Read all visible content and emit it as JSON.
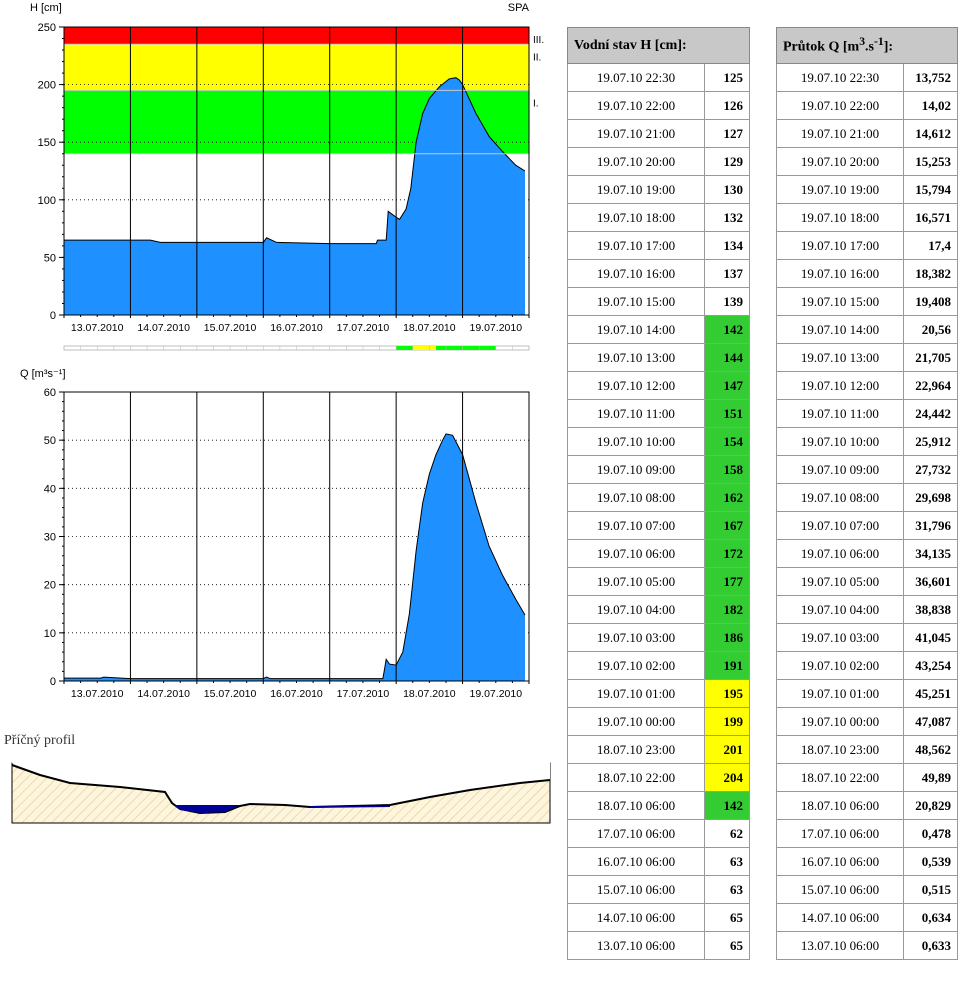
{
  "colors": {
    "area_fill": "#1e90ff",
    "area_stroke": "#000000",
    "level_red": "#ff0000",
    "level_yellow": "#ffff00",
    "level_green": "#00ff00",
    "level_line": "#c8c8c8",
    "table_header_bg": "#c8c8c8",
    "cell_green": "#33cc33",
    "cell_yellow": "#ffff00",
    "profile_fill": "#fdf5dd",
    "profile_hatch": "#e6d49a",
    "water_dark": "#000099"
  },
  "chart_data": [
    {
      "type": "area",
      "ylabel": "H [cm]",
      "corner_label": "SPA",
      "ylim": [
        0,
        250
      ],
      "yticks": [
        0,
        50,
        100,
        150,
        200,
        250
      ],
      "xlim": [
        0,
        7
      ],
      "xtick_labels": [
        "13.07.2010",
        "14.07.2010",
        "15.07.2010",
        "16.07.2010",
        "17.07.2010",
        "18.07.2010",
        "19.07.2010"
      ],
      "grid": "dotted horizontal, solid vertical day lines",
      "levels": [
        {
          "label": "I.",
          "from": 140,
          "to": 195,
          "color": "#00ff00"
        },
        {
          "label": "II.",
          "from": 195,
          "to": 235,
          "color": "#ffff00"
        },
        {
          "label": "III.",
          "from": 235,
          "to": 250,
          "color": "#ff0000"
        }
      ],
      "x": [
        0,
        1.3,
        1.45,
        3.0,
        3.05,
        3.2,
        4.0,
        4.7,
        4.72,
        4.85,
        4.88,
        4.95,
        5.05,
        5.15,
        5.22,
        5.3,
        5.4,
        5.5,
        5.65,
        5.8,
        5.9,
        5.95,
        6.0,
        6.2,
        6.4,
        6.6,
        6.8,
        6.94
      ],
      "y": [
        65,
        65,
        63,
        63,
        67,
        63,
        62,
        62,
        65,
        65,
        90,
        87,
        83,
        92,
        110,
        150,
        175,
        188,
        198,
        205,
        206,
        204,
        200,
        175,
        155,
        142,
        130,
        125
      ]
    },
    {
      "type": "area",
      "ylabel": "Q [m³s⁻¹]",
      "ylim": [
        0,
        60
      ],
      "yticks": [
        0,
        10,
        20,
        30,
        40,
        50,
        60
      ],
      "xlim": [
        0,
        7
      ],
      "xtick_labels": [
        "13.07.2010",
        "14.07.2010",
        "15.07.2010",
        "16.07.2010",
        "17.07.2010",
        "18.07.2010",
        "19.07.2010"
      ],
      "grid": "dotted horizontal, solid vertical day lines",
      "x": [
        0,
        0.55,
        0.6,
        1.0,
        3.0,
        3.05,
        3.1,
        4.8,
        4.85,
        4.9,
        5.0,
        5.1,
        5.2,
        5.3,
        5.4,
        5.5,
        5.6,
        5.7,
        5.75,
        5.85,
        6.0,
        6.2,
        6.4,
        6.6,
        6.8,
        6.94
      ],
      "y": [
        0.6,
        0.6,
        0.8,
        0.5,
        0.5,
        0.8,
        0.5,
        0.5,
        4.5,
        3.5,
        3.3,
        6,
        14,
        27,
        37,
        43,
        47,
        50,
        51.3,
        51,
        47,
        37,
        28,
        22,
        17,
        13.7
      ]
    }
  ],
  "profile": {
    "title": "Příčný profil"
  },
  "table_h": {
    "header": "Vodní stav H [cm]:",
    "rows": [
      {
        "time": "19.07.10 22:30",
        "value": "125",
        "level": ""
      },
      {
        "time": "19.07.10 22:00",
        "value": "126",
        "level": ""
      },
      {
        "time": "19.07.10 21:00",
        "value": "127",
        "level": ""
      },
      {
        "time": "19.07.10 20:00",
        "value": "129",
        "level": ""
      },
      {
        "time": "19.07.10 19:00",
        "value": "130",
        "level": ""
      },
      {
        "time": "19.07.10 18:00",
        "value": "132",
        "level": ""
      },
      {
        "time": "19.07.10 17:00",
        "value": "134",
        "level": ""
      },
      {
        "time": "19.07.10 16:00",
        "value": "137",
        "level": ""
      },
      {
        "time": "19.07.10 15:00",
        "value": "139",
        "level": ""
      },
      {
        "time": "19.07.10 14:00",
        "value": "142",
        "level": "green"
      },
      {
        "time": "19.07.10 13:00",
        "value": "144",
        "level": "green"
      },
      {
        "time": "19.07.10 12:00",
        "value": "147",
        "level": "green"
      },
      {
        "time": "19.07.10 11:00",
        "value": "151",
        "level": "green"
      },
      {
        "time": "19.07.10 10:00",
        "value": "154",
        "level": "green"
      },
      {
        "time": "19.07.10 09:00",
        "value": "158",
        "level": "green"
      },
      {
        "time": "19.07.10 08:00",
        "value": "162",
        "level": "green"
      },
      {
        "time": "19.07.10 07:00",
        "value": "167",
        "level": "green"
      },
      {
        "time": "19.07.10 06:00",
        "value": "172",
        "level": "green"
      },
      {
        "time": "19.07.10 05:00",
        "value": "177",
        "level": "green"
      },
      {
        "time": "19.07.10 04:00",
        "value": "182",
        "level": "green"
      },
      {
        "time": "19.07.10 03:00",
        "value": "186",
        "level": "green"
      },
      {
        "time": "19.07.10 02:00",
        "value": "191",
        "level": "green"
      },
      {
        "time": "19.07.10 01:00",
        "value": "195",
        "level": "yellow"
      },
      {
        "time": "19.07.10 00:00",
        "value": "199",
        "level": "yellow"
      },
      {
        "time": "18.07.10 23:00",
        "value": "201",
        "level": "yellow"
      },
      {
        "time": "18.07.10 22:00",
        "value": "204",
        "level": "yellow"
      },
      {
        "time": "18.07.10 06:00",
        "value": "142",
        "level": "green"
      },
      {
        "time": "17.07.10 06:00",
        "value": "62",
        "level": ""
      },
      {
        "time": "16.07.10 06:00",
        "value": "63",
        "level": ""
      },
      {
        "time": "15.07.10 06:00",
        "value": "63",
        "level": ""
      },
      {
        "time": "14.07.10 06:00",
        "value": "65",
        "level": ""
      },
      {
        "time": "13.07.10 06:00",
        "value": "65",
        "level": ""
      }
    ]
  },
  "table_q": {
    "header_pre": "Průtok Q [m",
    "header_sup1": "3",
    "header_mid": ".s",
    "header_sup2": "-1",
    "header_post": "]:",
    "rows": [
      {
        "time": "19.07.10 22:30",
        "value": "13,752"
      },
      {
        "time": "19.07.10 22:00",
        "value": "14,02"
      },
      {
        "time": "19.07.10 21:00",
        "value": "14,612"
      },
      {
        "time": "19.07.10 20:00",
        "value": "15,253"
      },
      {
        "time": "19.07.10 19:00",
        "value": "15,794"
      },
      {
        "time": "19.07.10 18:00",
        "value": "16,571"
      },
      {
        "time": "19.07.10 17:00",
        "value": "17,4"
      },
      {
        "time": "19.07.10 16:00",
        "value": "18,382"
      },
      {
        "time": "19.07.10 15:00",
        "value": "19,408"
      },
      {
        "time": "19.07.10 14:00",
        "value": "20,56"
      },
      {
        "time": "19.07.10 13:00",
        "value": "21,705"
      },
      {
        "time": "19.07.10 12:00",
        "value": "22,964"
      },
      {
        "time": "19.07.10 11:00",
        "value": "24,442"
      },
      {
        "time": "19.07.10 10:00",
        "value": "25,912"
      },
      {
        "time": "19.07.10 09:00",
        "value": "27,732"
      },
      {
        "time": "19.07.10 08:00",
        "value": "29,698"
      },
      {
        "time": "19.07.10 07:00",
        "value": "31,796"
      },
      {
        "time": "19.07.10 06:00",
        "value": "34,135"
      },
      {
        "time": "19.07.10 05:00",
        "value": "36,601"
      },
      {
        "time": "19.07.10 04:00",
        "value": "38,838"
      },
      {
        "time": "19.07.10 03:00",
        "value": "41,045"
      },
      {
        "time": "19.07.10 02:00",
        "value": "43,254"
      },
      {
        "time": "19.07.10 01:00",
        "value": "45,251"
      },
      {
        "time": "19.07.10 00:00",
        "value": "47,087"
      },
      {
        "time": "18.07.10 23:00",
        "value": "48,562"
      },
      {
        "time": "18.07.10 22:00",
        "value": "49,89"
      },
      {
        "time": "18.07.10 06:00",
        "value": "20,829"
      },
      {
        "time": "17.07.10 06:00",
        "value": "0,478"
      },
      {
        "time": "16.07.10 06:00",
        "value": "0,539"
      },
      {
        "time": "15.07.10 06:00",
        "value": "0,515"
      },
      {
        "time": "14.07.10 06:00",
        "value": "0,634"
      },
      {
        "time": "13.07.10 06:00",
        "value": "0,633"
      }
    ]
  }
}
